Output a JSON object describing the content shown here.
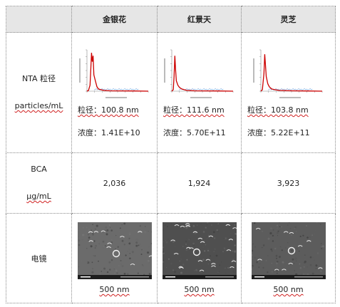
{
  "header": {
    "corner": "",
    "samples": [
      "金银花",
      "红景天",
      "灵芝"
    ]
  },
  "rows": {
    "nta": {
      "label_line1": "NTA  粒径",
      "label_line2": "particles/mL",
      "samples": [
        {
          "size_label": "粒径：100.8 nm",
          "conc_label": "浓度：1.41E+10"
        },
        {
          "size_label": "粒径：111.6 nm",
          "conc_label": "浓度：5.70E+11"
        },
        {
          "size_label": "粒径：103.8 nm",
          "conc_label": "浓度：5.22E+11"
        }
      ]
    },
    "bca": {
      "label_line1": "BCA",
      "label_line2": "μg/mL",
      "values": [
        "2,036",
        "1,924",
        "3,923"
      ]
    },
    "em": {
      "label": "电镜",
      "scale_labels": [
        "500 nm",
        "500 nm",
        "500 nm"
      ]
    }
  },
  "colors": {
    "header_bg": "#e6e6e6",
    "nta_curve": "#cc0000",
    "nta_minor": "#7a9fd6",
    "em_background": "#5a5a5a",
    "border": "#8a8a8a"
  },
  "icons": [
    "nta-distribution-plot",
    "tem-micrograph"
  ]
}
